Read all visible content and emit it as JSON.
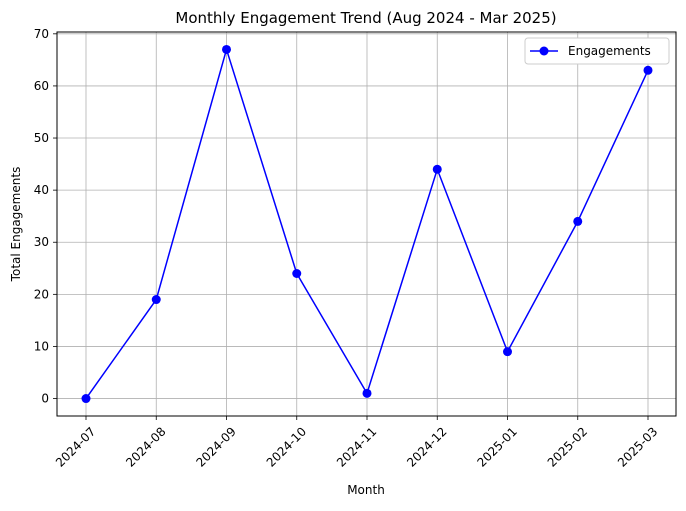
{
  "chart_data": {
    "type": "line",
    "title": "Monthly Engagement Trend (Aug 2024 - Mar 2025)",
    "xlabel": "Month",
    "ylabel": "Total Engagements",
    "categories": [
      "2024-07",
      "2024-08",
      "2024-09",
      "2024-10",
      "2024-11",
      "2024-12",
      "2025-01",
      "2025-02",
      "2025-03"
    ],
    "series": [
      {
        "name": "Engagements",
        "values": [
          0,
          19,
          67,
          24,
          1,
          44,
          9,
          34,
          63
        ],
        "color": "#0000ff",
        "marker": "circle"
      }
    ],
    "ylim": [
      -3.35,
      70.35
    ],
    "yticks": [
      0,
      10,
      20,
      30,
      40,
      50,
      60,
      70
    ],
    "grid": true,
    "legend_position": "top-right",
    "x_tick_rotation": 45
  }
}
